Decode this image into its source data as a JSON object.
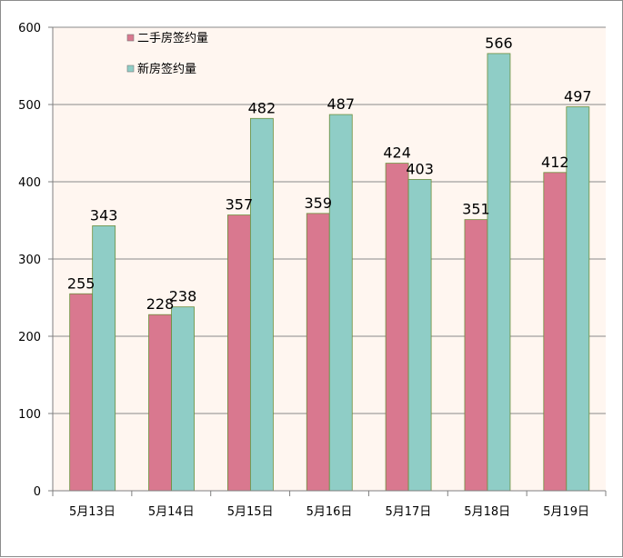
{
  "chart_data": {
    "type": "bar",
    "categories": [
      "5月13日",
      "5月14日",
      "5月15日",
      "5月16日",
      "5月17日",
      "5月18日",
      "5月19日"
    ],
    "series": [
      {
        "name": "二手房签约量",
        "values": [
          255,
          228,
          357,
          359,
          424,
          351,
          412
        ],
        "color": "#d9788f"
      },
      {
        "name": "新房签约量",
        "values": [
          343,
          238,
          482,
          487,
          403,
          566,
          497
        ],
        "color": "#8fcdc6"
      }
    ],
    "yticks": [
      "0",
      "100",
      "200",
      "300",
      "400",
      "500",
      "600"
    ],
    "ylim": [
      0,
      600
    ],
    "grid": true,
    "plot_background": "#fff6f0",
    "legend_position": "top-left-inside",
    "title": "",
    "xlabel": "",
    "ylabel": ""
  }
}
